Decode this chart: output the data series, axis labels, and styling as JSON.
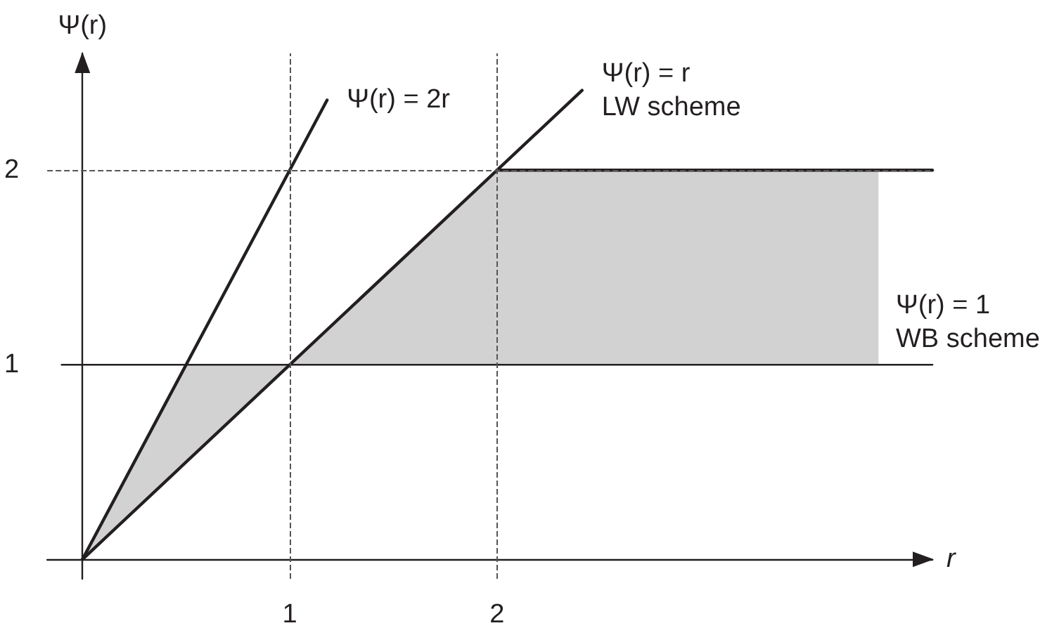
{
  "chart_data": {
    "type": "line",
    "xlabel": "r",
    "ylabel": "Ψ(r)",
    "xlim": [
      -0.17,
      4.1
    ],
    "ylim": [
      -0.1,
      2.6
    ],
    "xticks": [
      1,
      2
    ],
    "yticks": [
      1,
      2
    ],
    "grid": false,
    "legend": false,
    "marker": "none",
    "line_style": "solid",
    "series": [
      {
        "name": "Ψ(r) = 2r",
        "color": "#231f20",
        "x": [
          0,
          1.18
        ],
        "values": [
          0,
          2.36
        ]
      },
      {
        "name": "Ψ(r) = r\nLW scheme",
        "color": "#231f20",
        "x": [
          0,
          2.41
        ],
        "values": [
          0,
          2.41
        ]
      },
      {
        "name": "Ψ(r) = 1\nWB scheme",
        "color": "#231f20",
        "x": [
          -0.1,
          0,
          0.5,
          1,
          2,
          3.84,
          4.1
        ],
        "values": [
          1,
          1,
          1,
          1,
          1,
          1,
          1
        ],
        "lower": [
          null,
          0,
          0.5,
          1,
          1,
          1,
          null
        ],
        "upper": [
          null,
          0,
          1,
          1,
          2,
          2,
          null
        ]
      },
      {
        "color": "#231f20",
        "x": [
          2,
          4.1
        ],
        "values": [
          2,
          2
        ]
      }
    ],
    "ref_lines": [
      {
        "axis": "x",
        "value": 1,
        "color": "#555555",
        "line_style": "dashed"
      },
      {
        "axis": "x",
        "value": 2,
        "color": "#555555",
        "line_style": "dashed"
      },
      {
        "axis": "y",
        "value": 2,
        "color": "#555555",
        "line_style": "dashed"
      }
    ]
  }
}
